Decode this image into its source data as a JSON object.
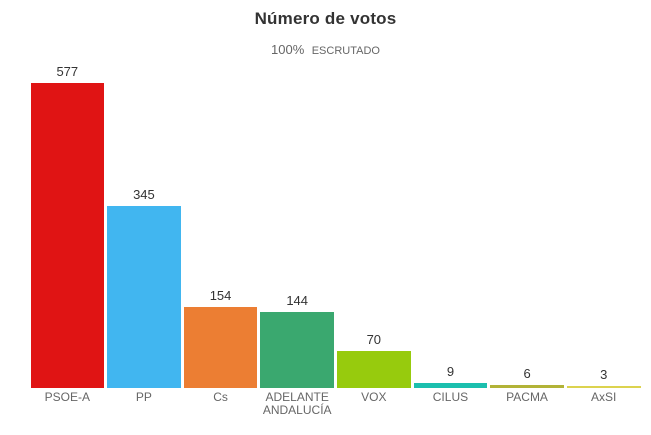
{
  "header": {
    "title": "Número de votos",
    "subtitle_percent": "100%",
    "subtitle_label": "ESCRUTADO"
  },
  "chart_data": {
    "type": "bar",
    "title": "Número de votos",
    "subtitle": "100% ESCRUTADO",
    "categories": [
      "PSOE-A",
      "PP",
      "Cs",
      "ADELANTE\nANDALUCÍA",
      "VOX",
      "CILUS",
      "PACMA",
      "AxSI"
    ],
    "values": [
      577,
      345,
      154,
      144,
      70,
      9,
      6,
      3
    ],
    "colors": [
      "#e01414",
      "#41b6f0",
      "#ec7e33",
      "#3aa86f",
      "#97cb0d",
      "#1bbfae",
      "#b2b337",
      "#dcd34f"
    ],
    "value_label_color": "#333333",
    "category_label_color": "#666666",
    "xlabel": "",
    "ylabel": "",
    "ylim": [
      0,
      600
    ],
    "grid": false,
    "legend": false,
    "y_axis_visible": false,
    "x_axis_line_visible": false
  }
}
